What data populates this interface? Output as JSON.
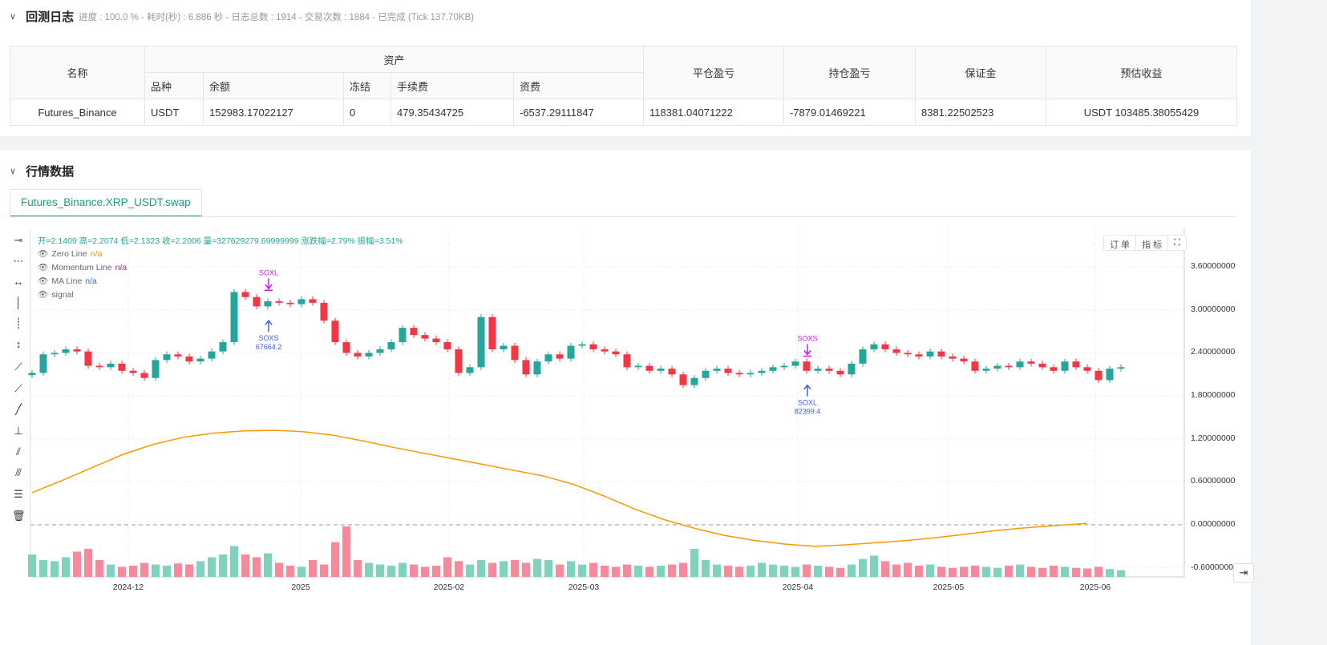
{
  "backtest": {
    "title": "回测日志",
    "summary": "进度 : 100.0 % - 耗时(秒) : 6.886  秒 - 日志总数 : 1914 - 交易次数 : 1884 - 已完成 (Tick 137.70KB)",
    "headers": {
      "name": "名称",
      "assets": "资产",
      "symbol": "品种",
      "balance": "余额",
      "frozen": "冻结",
      "fee": "手续费",
      "funding": "资费",
      "closed_pnl": "平仓盈亏",
      "position_pnl": "持仓盈亏",
      "margin": "保证金",
      "est_profit": "预估收益"
    },
    "row": {
      "name": "Futures_Binance",
      "symbol": "USDT",
      "balance": "152983.17022127",
      "frozen": "0",
      "fee": "479.35434725",
      "funding": "-6537.29111847",
      "closed_pnl": "118381.04071222",
      "position_pnl": "-7879.01469221",
      "margin": "8381.22502523",
      "est_profit": "USDT 103485.38055429"
    }
  },
  "market": {
    "title": "行情数据",
    "tab": "Futures_Binance.XRP_USDT.swap",
    "ohlc_line": "开=2.1409 高=2.2074 低=2.1323 收=2.2006 量=327629279.69999999 涨跌幅=2.79% 振幅=3.51%",
    "legend": [
      {
        "name": "Zero Line",
        "value": "n/a",
        "color": "#ff9800"
      },
      {
        "name": "Momentum Line",
        "value": "n/a",
        "color": "#9c27b0"
      },
      {
        "name": "MA Line",
        "value": "n/a",
        "color": "#2962ff"
      },
      {
        "name": "signal",
        "value": ""
      }
    ],
    "controls": {
      "orders": "订 单",
      "indicators": "指 标"
    }
  },
  "chart_data": {
    "type": "candlestick",
    "y_ticks": [
      "3.60000000",
      "3.00000000",
      "2.40000000",
      "1.80000000",
      "1.20000000",
      "0.60000000",
      "0.00000000",
      "-0.60000000"
    ],
    "ylim": [
      -0.75,
      3.95
    ],
    "x_ticks": [
      "2024-12",
      "2025",
      "2025-02",
      "2025-03",
      "2025-04",
      "2025-05",
      "2025-06"
    ],
    "up_color": "#26a69a",
    "down_color": "#f23645",
    "ma_color": "#ff9800",
    "close": [
      2.12,
      2.38,
      2.4,
      2.45,
      2.42,
      2.22,
      2.2,
      2.25,
      2.15,
      2.12,
      2.05,
      2.3,
      2.38,
      2.35,
      2.28,
      2.32,
      2.42,
      2.55,
      3.25,
      3.18,
      3.05,
      3.12,
      3.1,
      3.08,
      3.15,
      3.1,
      2.85,
      2.55,
      2.4,
      2.35,
      2.4,
      2.45,
      2.55,
      2.75,
      2.65,
      2.6,
      2.55,
      2.45,
      2.12,
      2.2,
      2.9,
      2.45,
      2.5,
      2.3,
      2.1,
      2.28,
      2.38,
      2.32,
      2.5,
      2.52,
      2.45,
      2.42,
      2.38,
      2.2,
      2.22,
      2.15,
      2.18,
      2.1,
      1.95,
      2.05,
      2.15,
      2.18,
      2.12,
      2.1,
      2.12,
      2.15,
      2.2,
      2.22,
      2.28,
      2.15,
      2.18,
      2.15,
      2.1,
      2.25,
      2.45,
      2.52,
      2.45,
      2.4,
      2.38,
      2.35,
      2.42,
      2.35,
      2.32,
      2.28,
      2.15,
      2.18,
      2.22,
      2.2,
      2.28,
      2.25,
      2.2,
      2.15,
      2.28,
      2.2,
      2.15,
      2.02,
      2.18,
      2.2
    ],
    "volume": [
      40,
      30,
      28,
      35,
      45,
      50,
      30,
      22,
      18,
      20,
      25,
      22,
      20,
      24,
      22,
      28,
      35,
      40,
      55,
      40,
      35,
      42,
      25,
      20,
      18,
      30,
      22,
      62,
      90,
      30,
      25,
      22,
      20,
      25,
      22,
      18,
      20,
      35,
      28,
      22,
      30,
      25,
      28,
      30,
      25,
      32,
      30,
      22,
      28,
      22,
      25,
      20,
      18,
      22,
      20,
      18,
      20,
      22,
      25,
      50,
      30,
      22,
      20,
      18,
      20,
      25,
      22,
      20,
      18,
      22,
      20,
      18,
      16,
      22,
      32,
      38,
      28,
      22,
      25,
      20,
      22,
      18,
      16,
      18,
      20,
      18,
      16,
      20,
      22,
      18,
      16,
      20,
      18,
      16,
      15,
      18,
      14,
      12
    ],
    "ma_line": [
      0.45,
      0.62,
      0.8,
      0.98,
      1.12,
      1.22,
      1.28,
      1.31,
      1.32,
      1.3,
      1.25,
      1.17,
      1.08,
      1.0,
      0.92,
      0.84,
      0.76,
      0.68,
      0.56,
      0.4,
      0.22,
      0.07,
      -0.05,
      -0.15,
      -0.22,
      -0.27,
      -0.3,
      -0.28,
      -0.25,
      -0.22,
      -0.18,
      -0.13,
      -0.08,
      -0.04,
      -0.01,
      0.02
    ],
    "zero_line": 0,
    "signals": [
      {
        "label": "SOXL",
        "dir": "sell",
        "index": 21,
        "price": 3.42
      },
      {
        "label": "SOXS",
        "dir": "buy",
        "index": 21,
        "price": 2.85,
        "amount": "67664.2"
      },
      {
        "label": "SOXS",
        "dir": "sell",
        "index": 69,
        "price": 2.5
      },
      {
        "label": "SOXL",
        "dir": "buy",
        "index": 69,
        "price": 1.95,
        "amount": "82399.4"
      }
    ]
  }
}
